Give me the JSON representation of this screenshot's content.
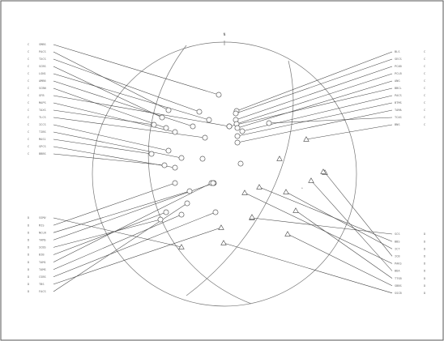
{
  "north_label": "N",
  "center_label": "+",
  "colors": {
    "ink": "#444444",
    "label": "#6a6a6a",
    "frame": "#555555",
    "background": "#ffffff"
  },
  "symbols": {
    "circle": "circle-marker",
    "triangle": "triangle-marker"
  },
  "groups": {
    "upper_left": {
      "code": "C",
      "items": [
        "SMBS",
        "PACS",
        "TXCS",
        "SCBS",
        "LGN1",
        "AMB6",
        "SCBN",
        "GFB",
        "MAPS",
        "TAXS",
        "TLCS",
        "ICCS",
        "TIBS",
        "MAS1",
        "SPCS",
        "BBBS"
      ]
    },
    "lower_left": {
      "code": "D",
      "items": [
        "SSMV",
        "MIS",
        "NCLN",
        "TAMS",
        "SCBS",
        "BIB",
        "TAM1",
        "TAMS",
        "CSBS",
        "TBS",
        "FACS"
      ]
    },
    "upper_right": {
      "code": "C",
      "items": [
        "BLS",
        "SECS",
        "PCAB",
        "PCLB",
        "ANG",
        "BBCL",
        "PACS",
        "BTMS",
        "TAMA",
        "TCAS",
        "BNS"
      ]
    },
    "lower_right": {
      "code": "D",
      "items": [
        "SCS",
        "BBS",
        "ICT",
        "ICB",
        "PAKS",
        "BDA",
        "TTSB",
        "SBBS",
        "SSCB"
      ]
    }
  }
}
